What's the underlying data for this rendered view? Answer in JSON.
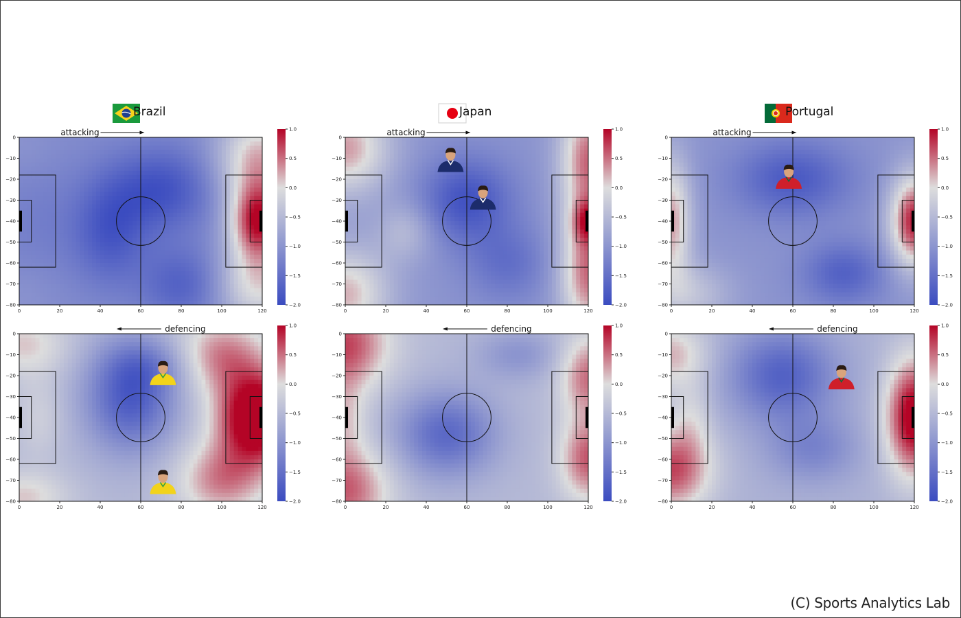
{
  "credit": "(C) Sports Analytics Lab",
  "colormap": {
    "name": "coolwarm",
    "low": "#3b4cc0",
    "mid": "#dddddd",
    "high": "#b40426"
  },
  "teams": [
    {
      "name": "Brazil",
      "flag": "brazil-flag"
    },
    {
      "name": "Japan",
      "flag": "japan-flag"
    },
    {
      "name": "Portugal",
      "flag": "portugal-flag"
    }
  ],
  "row_labels": {
    "attacking": "attacking",
    "defencing": "defencing"
  },
  "chart_data": [
    {
      "type": "heatmap",
      "team": "Brazil",
      "phase": "attacking",
      "direction": "right",
      "xlim": [
        0,
        120
      ],
      "ylim": [
        -80,
        0
      ],
      "clim": [
        -2.0,
        1.0
      ],
      "xticks": [
        0,
        20,
        40,
        60,
        80,
        100,
        120
      ],
      "yticks": [
        0,
        -10,
        -20,
        -30,
        -40,
        -50,
        -60,
        -70,
        -80
      ],
      "cbar_ticks": [
        1.0,
        0.5,
        0.0,
        -0.5,
        -1.0,
        -1.5,
        -2.0
      ],
      "players": [],
      "field": {
        "base": -1.1,
        "blobs": [
          [
            118,
            -10,
            20,
            22,
            1.3
          ],
          [
            118,
            -40,
            14,
            18,
            1.9
          ],
          [
            118,
            -70,
            20,
            20,
            1.1
          ],
          [
            10,
            -40,
            25,
            30,
            -0.2
          ],
          [
            70,
            -25,
            25,
            20,
            -0.8
          ],
          [
            45,
            -45,
            18,
            25,
            -0.7
          ],
          [
            80,
            -70,
            20,
            18,
            -0.6
          ],
          [
            2,
            -5,
            15,
            15,
            0.1
          ],
          [
            2,
            -75,
            15,
            15,
            0.1
          ]
        ]
      }
    },
    {
      "type": "heatmap",
      "team": "Japan",
      "phase": "attacking",
      "direction": "right",
      "xlim": [
        0,
        120
      ],
      "ylim": [
        -80,
        0
      ],
      "clim": [
        -2.0,
        1.0
      ],
      "xticks": [
        0,
        20,
        40,
        60,
        80,
        100,
        120
      ],
      "yticks": [
        0,
        -10,
        -20,
        -30,
        -40,
        -50,
        -60,
        -70,
        -80
      ],
      "cbar_ticks": [
        1.0,
        0.5,
        0.0,
        -0.5,
        -1.0,
        -1.5,
        -2.0
      ],
      "players": [
        {
          "label": "player-1",
          "x": 52,
          "y": -10
        },
        {
          "label": "player-2",
          "x": 68,
          "y": -28
        }
      ],
      "field": {
        "base": -1.0,
        "blobs": [
          [
            0,
            -5,
            22,
            22,
            1.3
          ],
          [
            0,
            -75,
            22,
            22,
            1.2
          ],
          [
            120,
            -10,
            14,
            30,
            1.5
          ],
          [
            120,
            -65,
            14,
            30,
            1.5
          ],
          [
            120,
            -40,
            8,
            10,
            0.9
          ],
          [
            60,
            -30,
            22,
            20,
            -0.9
          ],
          [
            80,
            -60,
            20,
            18,
            -0.5
          ],
          [
            30,
            -45,
            14,
            14,
            0.5
          ]
        ]
      }
    },
    {
      "type": "heatmap",
      "team": "Portugal",
      "phase": "attacking",
      "direction": "right",
      "xlim": [
        0,
        120
      ],
      "ylim": [
        -80,
        0
      ],
      "clim": [
        -2.0,
        1.0
      ],
      "xticks": [
        0,
        20,
        40,
        60,
        80,
        100,
        120
      ],
      "yticks": [
        0,
        -10,
        -20,
        -30,
        -40,
        -50,
        -60,
        -70,
        -80
      ],
      "cbar_ticks": [
        1.0,
        0.5,
        0.0,
        -0.5,
        -1.0,
        -1.5,
        -2.0
      ],
      "players": [
        {
          "label": "player-1",
          "x": 58,
          "y": -18
        }
      ],
      "field": {
        "base": -1.0,
        "blobs": [
          [
            120,
            -40,
            12,
            22,
            1.9
          ],
          [
            0,
            -40,
            10,
            30,
            1.3
          ],
          [
            10,
            -75,
            20,
            15,
            0.6
          ],
          [
            60,
            -20,
            28,
            18,
            -0.8
          ],
          [
            85,
            -65,
            20,
            15,
            -0.7
          ]
        ]
      }
    },
    {
      "type": "heatmap",
      "team": "Brazil",
      "phase": "defencing",
      "direction": "left",
      "xlim": [
        0,
        120
      ],
      "ylim": [
        -80,
        0
      ],
      "clim": [
        -2.0,
        1.0
      ],
      "xticks": [
        0,
        20,
        40,
        60,
        80,
        100,
        120
      ],
      "yticks": [
        0,
        -10,
        -20,
        -30,
        -40,
        -50,
        -60,
        -70,
        -80
      ],
      "cbar_ticks": [
        1.0,
        0.5,
        0.0,
        -0.5,
        -1.0,
        -1.5,
        -2.0
      ],
      "players": [
        {
          "label": "player-1",
          "x": 71,
          "y": -18
        },
        {
          "label": "player-2",
          "x": 71,
          "y": -70
        }
      ],
      "field": {
        "base": -0.5,
        "blobs": [
          [
            118,
            -40,
            20,
            22,
            2.0
          ],
          [
            100,
            -10,
            22,
            18,
            0.9
          ],
          [
            100,
            -70,
            22,
            18,
            0.9
          ],
          [
            2,
            -5,
            22,
            15,
            0.6
          ],
          [
            2,
            -78,
            22,
            12,
            0.6
          ],
          [
            10,
            -40,
            12,
            20,
            0.3
          ],
          [
            55,
            -30,
            22,
            26,
            -1.3
          ],
          [
            65,
            -15,
            20,
            12,
            -0.4
          ]
        ]
      }
    },
    {
      "type": "heatmap",
      "team": "Japan",
      "phase": "defencing",
      "direction": "left",
      "xlim": [
        0,
        120
      ],
      "ylim": [
        -80,
        0
      ],
      "clim": [
        -2.0,
        1.0
      ],
      "xticks": [
        0,
        20,
        40,
        60,
        80,
        100,
        120
      ],
      "yticks": [
        0,
        -10,
        -20,
        -30,
        -40,
        -50,
        -60,
        -70,
        -80
      ],
      "cbar_ticks": [
        1.0,
        0.5,
        0.0,
        -0.5,
        -1.0,
        -1.5,
        -2.0
      ],
      "players": [],
      "field": {
        "base": -0.5,
        "blobs": [
          [
            0,
            -5,
            22,
            22,
            1.2
          ],
          [
            0,
            -75,
            22,
            22,
            1.1
          ],
          [
            0,
            -40,
            10,
            20,
            0.5
          ],
          [
            120,
            -20,
            14,
            20,
            1.0
          ],
          [
            120,
            -60,
            14,
            20,
            1.1
          ],
          [
            50,
            -48,
            24,
            20,
            -1.1
          ],
          [
            85,
            -10,
            20,
            12,
            -0.5
          ]
        ]
      }
    },
    {
      "type": "heatmap",
      "team": "Portugal",
      "phase": "defencing",
      "direction": "left",
      "xlim": [
        0,
        120
      ],
      "ylim": [
        -80,
        0
      ],
      "clim": [
        -2.0,
        1.0
      ],
      "xticks": [
        0,
        20,
        40,
        60,
        80,
        100,
        120
      ],
      "yticks": [
        0,
        -10,
        -20,
        -30,
        -40,
        -50,
        -60,
        -70,
        -80
      ],
      "cbar_ticks": [
        1.0,
        0.5,
        0.0,
        -0.5,
        -1.0,
        -1.5,
        -2.0
      ],
      "players": [
        {
          "label": "player-1",
          "x": 84,
          "y": -20
        }
      ],
      "field": {
        "base": -0.6,
        "blobs": [
          [
            120,
            -40,
            14,
            28,
            1.8
          ],
          [
            0,
            -65,
            20,
            20,
            1.3
          ],
          [
            0,
            -10,
            18,
            16,
            0.8
          ],
          [
            10,
            -40,
            10,
            18,
            0.4
          ],
          [
            55,
            -20,
            26,
            22,
            -1.1
          ],
          [
            70,
            -55,
            22,
            16,
            -0.6
          ]
        ]
      }
    }
  ]
}
